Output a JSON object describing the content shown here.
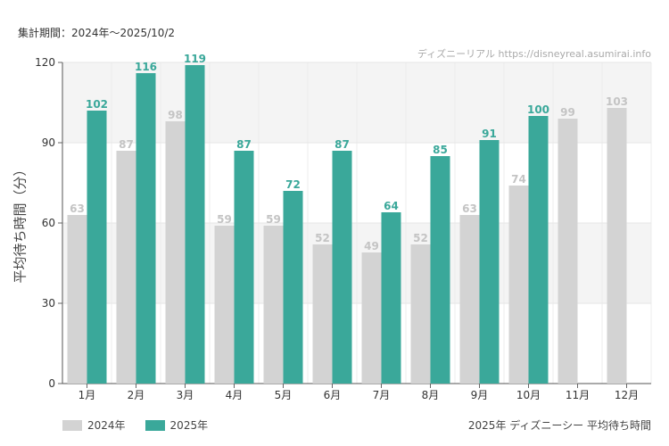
{
  "header": {
    "period_label": "集計期間：2024年～2025/10/2",
    "credit": "ディズニーリアル https://disneyreal.asumirai.info"
  },
  "footer": {
    "caption": "2025年 ディズニーシー 平均待ち時間"
  },
  "colors": {
    "series_2024": "#d3d3d3",
    "series_2025": "#3aa89a",
    "band": "#f4f4f4"
  },
  "chart_data": {
    "type": "bar",
    "ylabel": "平均待ち時間（分）",
    "ylim": [
      0,
      120
    ],
    "yticks": [
      0,
      30,
      60,
      90,
      120
    ],
    "categories": [
      "1月",
      "2月",
      "3月",
      "4月",
      "5月",
      "6月",
      "7月",
      "8月",
      "9月",
      "10月",
      "11月",
      "12月"
    ],
    "series": [
      {
        "name": "2024年",
        "values": [
          63,
          87,
          98,
          59,
          59,
          52,
          49,
          52,
          63,
          74,
          99,
          103
        ]
      },
      {
        "name": "2025年",
        "values": [
          102,
          116,
          119,
          87,
          72,
          87,
          64,
          85,
          91,
          100,
          null,
          null
        ]
      }
    ],
    "legend": "bottom-left"
  }
}
